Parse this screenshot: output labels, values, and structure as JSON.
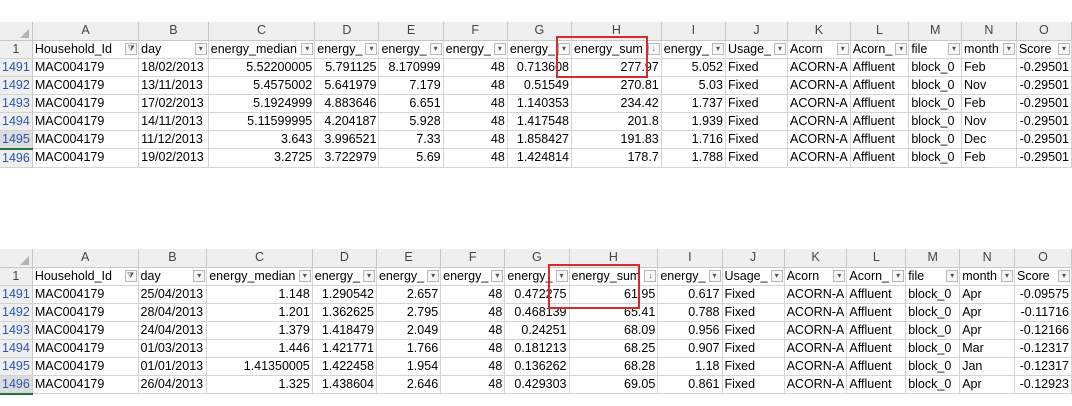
{
  "sheet_columns": [
    "A",
    "B",
    "C",
    "D",
    "E",
    "F",
    "G",
    "H",
    "I",
    "J",
    "K",
    "L",
    "M",
    "N",
    "O"
  ],
  "header_row_number": "1",
  "top": {
    "headers": [
      "Household_Id",
      "day",
      "energy_median",
      "energy_",
      "energy_",
      "energy_",
      "energy_",
      "energy_sum",
      "energy_",
      "Usage_",
      "Acorn",
      "Acorn_",
      "file",
      "month",
      "Score"
    ],
    "filter_glyphs": [
      "⧩",
      "▾",
      "▾",
      "▾",
      "▾",
      "▾",
      "▾",
      "↓",
      "▾",
      "▾",
      "▾",
      "▾",
      "▾",
      "▾",
      "▾"
    ],
    "rows": [
      {
        "n": "1491",
        "c": [
          "MAC004179",
          "18/02/2013",
          "5.52200005",
          "5.791125",
          "8.170999",
          "48",
          "0.713608",
          "277.97",
          "5.052",
          "Fixed",
          "ACORN-A",
          "Affluent",
          "block_0",
          "Feb",
          "-0.29501"
        ]
      },
      {
        "n": "1492",
        "c": [
          "MAC004179",
          "13/11/2013",
          "5.4575002",
          "5.641979",
          "7.179",
          "48",
          "0.51549",
          "270.81",
          "5.03",
          "Fixed",
          "ACORN-A",
          "Affluent",
          "block_0",
          "Nov",
          "-0.29501"
        ]
      },
      {
        "n": "1493",
        "c": [
          "MAC004179",
          "17/02/2013",
          "5.1924999",
          "4.883646",
          "6.651",
          "48",
          "1.140353",
          "234.42",
          "1.737",
          "Fixed",
          "ACORN-A",
          "Affluent",
          "block_0",
          "Feb",
          "-0.29501"
        ]
      },
      {
        "n": "1494",
        "c": [
          "MAC004179",
          "14/11/2013",
          "5.11599995",
          "4.204187",
          "5.928",
          "48",
          "1.417548",
          "201.8",
          "1.939",
          "Fixed",
          "ACORN-A",
          "Affluent",
          "block_0",
          "Nov",
          "-0.29501"
        ]
      },
      {
        "n": "1495",
        "c": [
          "MAC004179",
          "11/12/2013",
          "3.643",
          "3.996521",
          "7.33",
          "48",
          "1.858427",
          "191.83",
          "1.716",
          "Fixed",
          "ACORN-A",
          "Affluent",
          "block_0",
          "Dec",
          "-0.29501"
        ]
      },
      {
        "n": "1496",
        "c": [
          "MAC004179",
          "19/02/2013",
          "3.2725",
          "3.722979",
          "5.69",
          "48",
          "1.424814",
          "178.7",
          "1.788",
          "Fixed",
          "ACORN-A",
          "Affluent",
          "block_0",
          "Feb",
          "-0.29501"
        ]
      }
    ]
  },
  "bottom": {
    "headers": [
      "Household_Id",
      "day",
      "energy_median",
      "energy_",
      "energy_",
      "energy_",
      "energy_",
      "energy_sum",
      "energy_",
      "Usage_",
      "Acorn",
      "Acorn_",
      "file",
      "month",
      "Score"
    ],
    "filter_glyphs": [
      "⧩",
      "▾",
      "▾",
      "▾",
      "▾",
      "▾",
      "▾",
      "↓",
      "▾",
      "▾",
      "▾",
      "▾",
      "▾",
      "▾",
      "▾"
    ],
    "rows": [
      {
        "n": "1491",
        "c": [
          "MAC004179",
          "25/04/2013",
          "1.148",
          "1.290542",
          "2.657",
          "48",
          "0.472275",
          "61.95",
          "0.617",
          "Fixed",
          "ACORN-A",
          "Affluent",
          "block_0",
          "Apr",
          "-0.09575"
        ]
      },
      {
        "n": "1492",
        "c": [
          "MAC004179",
          "28/04/2013",
          "1.201",
          "1.362625",
          "2.795",
          "48",
          "0.468139",
          "65.41",
          "0.788",
          "Fixed",
          "ACORN-A",
          "Affluent",
          "block_0",
          "Apr",
          "-0.11716"
        ]
      },
      {
        "n": "1493",
        "c": [
          "MAC004179",
          "24/04/2013",
          "1.379",
          "1.418479",
          "2.049",
          "48",
          "0.24251",
          "68.09",
          "0.956",
          "Fixed",
          "ACORN-A",
          "Affluent",
          "block_0",
          "Apr",
          "-0.12166"
        ]
      },
      {
        "n": "1494",
        "c": [
          "MAC004179",
          "01/03/2013",
          "1.446",
          "1.421771",
          "1.766",
          "48",
          "0.181213",
          "68.25",
          "0.907",
          "Fixed",
          "ACORN-A",
          "Affluent",
          "block_0",
          "Mar",
          "-0.12317"
        ]
      },
      {
        "n": "1495",
        "c": [
          "MAC004179",
          "01/01/2013",
          "1.41350005",
          "1.422458",
          "1.954",
          "48",
          "0.136262",
          "68.28",
          "1.18",
          "Fixed",
          "ACORN-A",
          "Affluent",
          "block_0",
          "Jan",
          "-0.12317"
        ]
      },
      {
        "n": "1496",
        "c": [
          "MAC004179",
          "26/04/2013",
          "1.325",
          "1.438604",
          "2.646",
          "48",
          "0.429303",
          "69.05",
          "0.861",
          "Fixed",
          "ACORN-A",
          "Affluent",
          "block_0",
          "Apr",
          "-0.12923"
        ]
      }
    ]
  },
  "colors": {
    "highlight_box": "#d42b2b",
    "row_number_blue": "#2b56b4",
    "header_bg": "#efefef"
  }
}
